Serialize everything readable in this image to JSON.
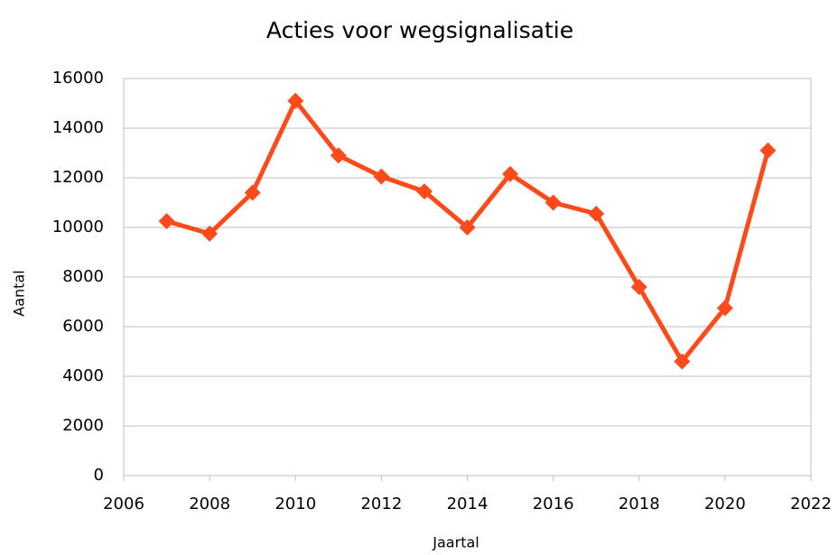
{
  "chart_data": {
    "type": "line",
    "title": "Acties voor wegsignalisatie",
    "xlabel": "Jaartal",
    "ylabel": "Aantal",
    "x": [
      2007,
      2008,
      2009,
      2010,
      2011,
      2012,
      2013,
      2014,
      2015,
      2016,
      2017,
      2018,
      2019,
      2020,
      2021
    ],
    "values": [
      10250,
      9750,
      11400,
      15100,
      12900,
      12050,
      11450,
      10000,
      12150,
      11000,
      10550,
      7600,
      4600,
      6750,
      13100
    ],
    "color": "#fc4a1a",
    "xlim": [
      2006,
      2022
    ],
    "xticks": [
      2006,
      2008,
      2010,
      2012,
      2014,
      2016,
      2018,
      2020,
      2022
    ],
    "ylim": [
      0,
      16000
    ],
    "yticks": [
      0,
      2000,
      4000,
      6000,
      8000,
      10000,
      12000,
      14000,
      16000
    ],
    "grid": true
  }
}
